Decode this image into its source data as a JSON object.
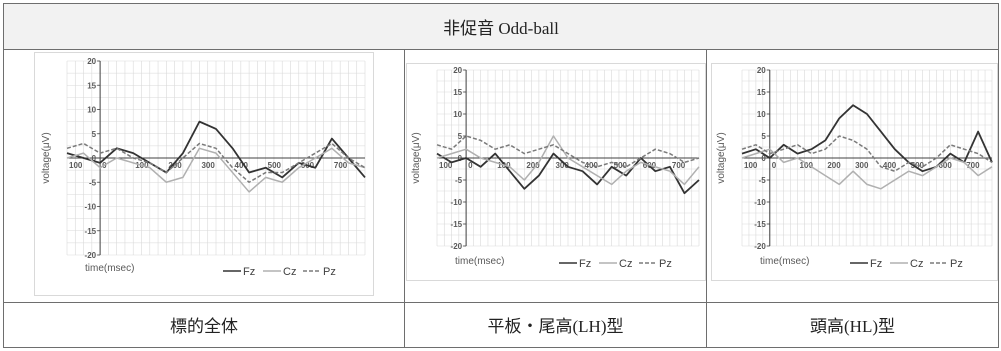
{
  "header": {
    "title": "非促音 Odd-ball"
  },
  "captions": [
    "標的全体",
    "平板・尾高(LH)型",
    "頭高(HL)型"
  ],
  "colors": {
    "Fz": "#333333",
    "Cz": "#b0b0b0",
    "Pz": "#7a7a7a",
    "grid": "#d9d9d9",
    "axis": "#404040"
  },
  "chart_data": [
    {
      "type": "line",
      "title": "",
      "xlabel": "time(msec)",
      "ylabel": "voltage(μV)",
      "xlim": [
        -100,
        800
      ],
      "ylim": [
        -20,
        20
      ],
      "yticks": [
        -20,
        -15,
        -10,
        -5,
        0,
        5,
        10,
        15,
        20
      ],
      "xtick_labels": [
        "100",
        "0",
        "100",
        "200",
        "300",
        "400",
        "500",
        "600",
        "700"
      ],
      "legend": "bottom-right",
      "x": [
        -100,
        -50,
        0,
        50,
        100,
        150,
        200,
        250,
        300,
        350,
        400,
        450,
        500,
        550,
        600,
        650,
        700,
        750,
        800
      ],
      "series": [
        {
          "name": "Fz",
          "dash": "solid",
          "y": [
            1,
            0,
            -1,
            2,
            1,
            -1,
            -3,
            1,
            7.5,
            6,
            2,
            -3,
            -2,
            -4,
            -1,
            -2,
            4,
            0,
            -4
          ]
        },
        {
          "name": "Cz",
          "dash": "solid",
          "y": [
            0,
            1,
            -2,
            0,
            -1,
            -2,
            -5,
            -4,
            2,
            1,
            -3,
            -7,
            -4,
            -5,
            -2,
            0,
            2,
            -1,
            -2
          ]
        },
        {
          "name": "Pz",
          "dash": "dashed",
          "y": [
            2,
            3,
            1,
            2,
            0,
            -1,
            -3,
            0,
            3,
            2,
            -2,
            -5,
            -3,
            -3,
            -1,
            1,
            3,
            0,
            -2
          ]
        }
      ]
    },
    {
      "type": "line",
      "title": "",
      "xlabel": "time(msec)",
      "ylabel": "voltage(μV)",
      "xlim": [
        -100,
        800
      ],
      "ylim": [
        -20,
        20
      ],
      "yticks": [
        -20,
        -15,
        -10,
        -5,
        0,
        5,
        10,
        15,
        20
      ],
      "xtick_labels": [
        "100",
        "0",
        "100",
        "200",
        "300",
        "400",
        "500",
        "600",
        "700"
      ],
      "legend": "bottom-right",
      "x": [
        -100,
        -50,
        0,
        50,
        100,
        150,
        200,
        250,
        300,
        350,
        400,
        450,
        500,
        550,
        600,
        650,
        700,
        750,
        800
      ],
      "series": [
        {
          "name": "Fz",
          "dash": "solid",
          "y": [
            1,
            -1,
            0,
            -2,
            1,
            -3,
            -7,
            -4,
            1,
            -2,
            -3,
            -6,
            -2,
            -4,
            0,
            -3,
            -2,
            -8,
            -5
          ]
        },
        {
          "name": "Cz",
          "dash": "solid",
          "y": [
            0,
            1,
            2,
            0,
            -1,
            -2,
            -5,
            -1,
            5,
            0,
            -2,
            -4,
            -6,
            -3,
            -1,
            -2,
            -3,
            -6,
            -2
          ]
        },
        {
          "name": "Pz",
          "dash": "dashed",
          "y": [
            3,
            2,
            5,
            4,
            2,
            3,
            1,
            2,
            3,
            1,
            -1,
            -2,
            -1,
            -2,
            0,
            2,
            1,
            -1,
            0
          ]
        }
      ]
    },
    {
      "type": "line",
      "title": "",
      "xlabel": "time(msec)",
      "ylabel": "voltage(μV)",
      "xlim": [
        -100,
        800
      ],
      "ylim": [
        -20,
        20
      ],
      "yticks": [
        -20,
        -15,
        -10,
        -5,
        0,
        5,
        10,
        15,
        20
      ],
      "xtick_labels": [
        "100",
        "0",
        "100",
        "200",
        "300",
        "400",
        "500",
        "600",
        "700"
      ],
      "legend": "bottom-right",
      "x": [
        -100,
        -50,
        0,
        50,
        100,
        150,
        200,
        250,
        300,
        350,
        400,
        450,
        500,
        550,
        600,
        650,
        700,
        750,
        800
      ],
      "series": [
        {
          "name": "Fz",
          "dash": "solid",
          "y": [
            1,
            2,
            0,
            3,
            1,
            2,
            4,
            9,
            12,
            10,
            6,
            2,
            -1,
            -3,
            -2,
            1,
            -1,
            6,
            -1
          ]
        },
        {
          "name": "Cz",
          "dash": "solid",
          "y": [
            0,
            1,
            2,
            -1,
            0,
            -2,
            -4,
            -6,
            -3,
            -6,
            -7,
            -5,
            -3,
            -4,
            -2,
            0,
            -1,
            -4,
            -2
          ]
        },
        {
          "name": "Pz",
          "dash": "dashed",
          "y": [
            2,
            3,
            1,
            2,
            3,
            1,
            2,
            5,
            4,
            2,
            -2,
            -3,
            -1,
            -2,
            0,
            3,
            2,
            1,
            -1
          ]
        }
      ]
    }
  ]
}
